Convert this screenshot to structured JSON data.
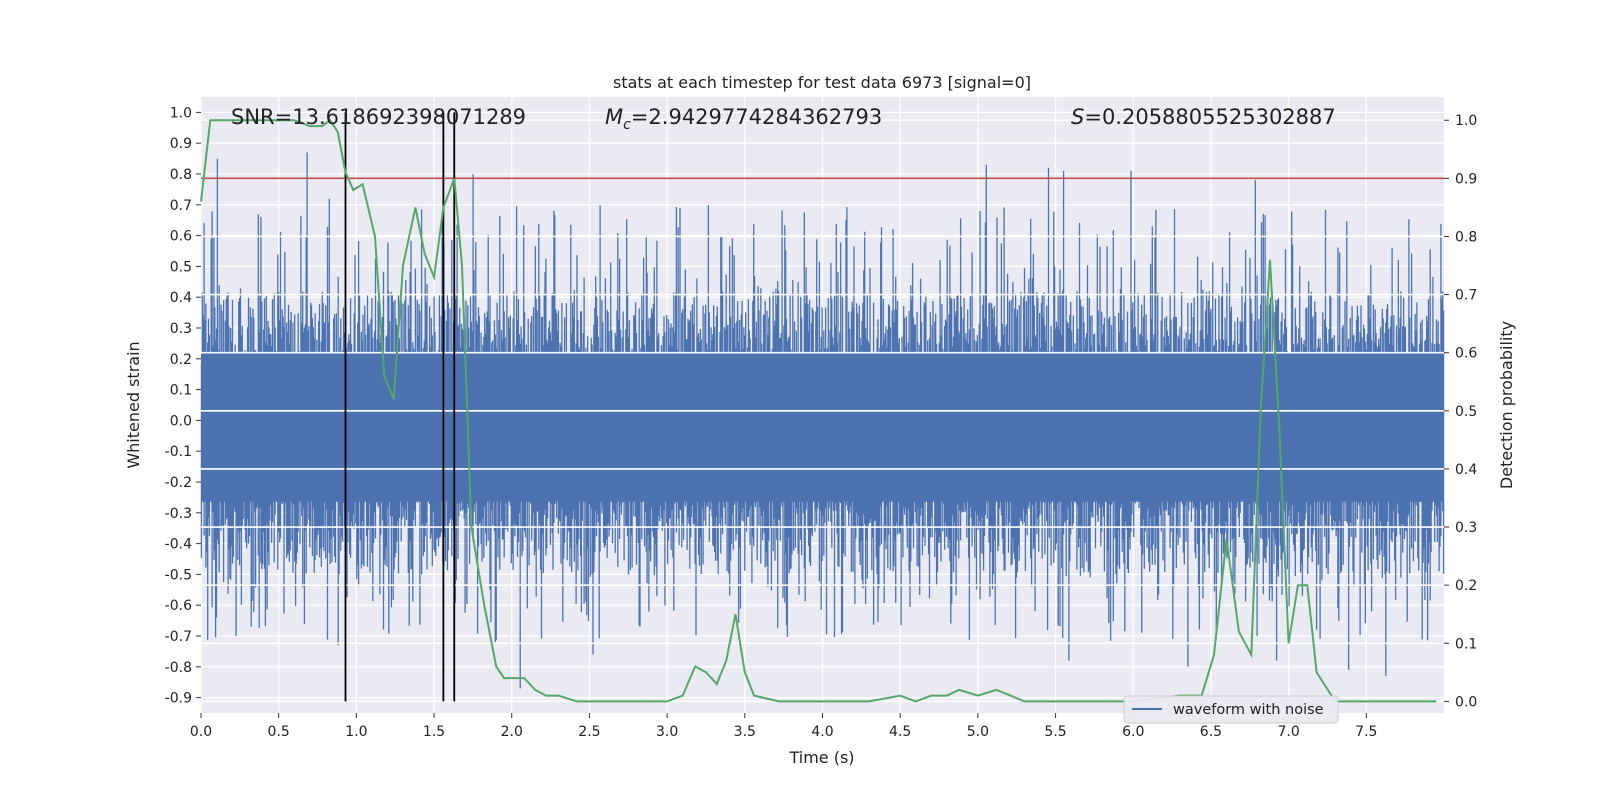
{
  "chart_data": {
    "type": "line",
    "title": "stats at each timestep for test data 6973 [signal=0]",
    "xlabel": "Time (s)",
    "ylabel_left": "Whitened strain",
    "ylabel_right": "Detection probability",
    "xlim": [
      0.0,
      8.0
    ],
    "ylim_left": [
      -0.95,
      1.05
    ],
    "ylim_right": [
      -0.02,
      1.04
    ],
    "x_ticks": [
      "0.0",
      "0.5",
      "1.0",
      "1.5",
      "2.0",
      "2.5",
      "3.0",
      "3.5",
      "4.0",
      "4.5",
      "5.0",
      "5.5",
      "6.0",
      "6.5",
      "7.0",
      "7.5"
    ],
    "y_left_ticks": [
      "1.0",
      "0.9",
      "0.8",
      "0.7",
      "0.6",
      "0.5",
      "0.4",
      "0.3",
      "0.2",
      "0.1",
      "0.0",
      "-0.1",
      "-0.2",
      "-0.3",
      "-0.4",
      "-0.5",
      "-0.6",
      "-0.7",
      "-0.8",
      "-0.9"
    ],
    "y_right_ticks": [
      "1.0",
      "0.9",
      "0.8",
      "0.7",
      "0.6",
      "0.5",
      "0.4",
      "0.3",
      "0.2",
      "0.1",
      "0.0"
    ],
    "annotations": {
      "snr": "SNR=13.618692398071289",
      "mc_symbol": "M",
      "mc_sub": "c",
      "mc_value": "=2.9429774284362793",
      "s_symbol": "S",
      "s_value": "=0.2058805525302887"
    },
    "threshold": 0.9,
    "vertical_lines_x": [
      0.93,
      1.56,
      1.63
    ],
    "legend": [
      "waveform with noise"
    ],
    "series": [
      {
        "name": "waveform with noise",
        "color": "#4c72b0",
        "envelope": {
          "typical_max": 0.4,
          "typical_min": -0.48,
          "peaks": [
            [
              0.1,
              0.85
            ],
            [
              0.68,
              0.87
            ],
            [
              0.82,
              0.72
            ],
            [
              1.75,
              0.8
            ],
            [
              5.05,
              0.83
            ],
            [
              5.45,
              0.82
            ],
            [
              5.55,
              0.81
            ],
            [
              5.98,
              0.81
            ],
            [
              6.78,
              0.78
            ]
          ],
          "troughs": [
            [
              0.22,
              -0.7
            ],
            [
              0.88,
              -0.73
            ],
            [
              2.05,
              -0.87
            ],
            [
              2.52,
              -0.76
            ],
            [
              5.58,
              -0.78
            ],
            [
              6.35,
              -0.8
            ],
            [
              6.92,
              -0.78
            ],
            [
              7.38,
              -0.81
            ],
            [
              7.62,
              -0.83
            ]
          ]
        }
      },
      {
        "name": "detection probability",
        "color": "#55a868",
        "x": [
          0.0,
          0.06,
          0.2,
          0.4,
          0.6,
          0.7,
          0.78,
          0.83,
          0.88,
          0.93,
          0.98,
          1.04,
          1.12,
          1.18,
          1.24,
          1.3,
          1.38,
          1.44,
          1.5,
          1.56,
          1.63,
          1.68,
          1.74,
          1.82,
          1.9,
          1.95,
          2.0,
          2.08,
          2.15,
          2.22,
          2.3,
          2.42,
          2.6,
          2.8,
          3.0,
          3.1,
          3.18,
          3.25,
          3.32,
          3.38,
          3.44,
          3.5,
          3.56,
          3.72,
          4.0,
          4.3,
          4.5,
          4.6,
          4.7,
          4.8,
          4.88,
          5.0,
          5.12,
          5.3,
          5.6,
          6.0,
          6.3,
          6.44,
          6.52,
          6.6,
          6.68,
          6.76,
          6.82,
          6.88,
          6.94,
          7.0,
          7.06,
          7.12,
          7.18,
          7.3,
          7.6,
          7.95
        ],
        "values": [
          0.86,
          1.0,
          1.0,
          1.0,
          1.0,
          0.99,
          0.99,
          1.0,
          0.98,
          0.91,
          0.88,
          0.89,
          0.8,
          0.56,
          0.52,
          0.75,
          0.85,
          0.77,
          0.73,
          0.85,
          0.9,
          0.75,
          0.3,
          0.17,
          0.06,
          0.04,
          0.04,
          0.04,
          0.02,
          0.01,
          0.01,
          0.0,
          0.0,
          0.0,
          0.0,
          0.01,
          0.06,
          0.05,
          0.03,
          0.07,
          0.15,
          0.05,
          0.01,
          0.0,
          0.0,
          0.0,
          0.01,
          0.0,
          0.01,
          0.01,
          0.02,
          0.01,
          0.02,
          0.0,
          0.0,
          0.0,
          0.01,
          0.01,
          0.08,
          0.28,
          0.12,
          0.08,
          0.5,
          0.76,
          0.47,
          0.1,
          0.2,
          0.2,
          0.05,
          0.0,
          0.0,
          0.0
        ]
      }
    ],
    "colors": {
      "background": "#eaeaf2",
      "grid": "#ffffff",
      "waveform": "#4c72b0",
      "probability": "#55a868",
      "threshold": "#c44e52",
      "markers": "#000000"
    }
  }
}
